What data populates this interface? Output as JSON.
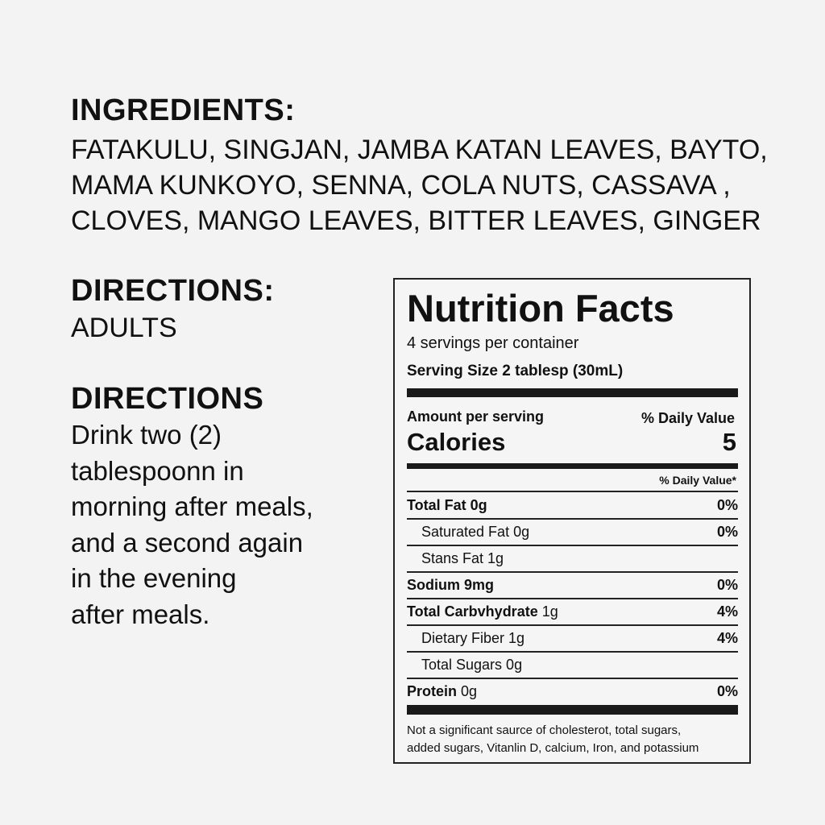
{
  "ingredients": {
    "heading": "INGREDIENTS:",
    "lines": [
      "FATAKULU, SINGJAN, JAMBA KATAN LEAVES, BAYTO,",
      "MAMA KUNKOYO, SENNA, COLA NUTS, CASSAVA ,",
      "CLOVES, MANGO LEAVES, BITTER LEAVES, GINGER"
    ]
  },
  "directions_1": {
    "heading": "DIRECTIONS:",
    "text": "ADULTS"
  },
  "directions_2": {
    "heading": "DIRECTIONS",
    "lines": [
      "Drink two (2)",
      "tablespoonn in",
      "morning after meals,",
      "and a second again",
      "in the evening",
      "after meals."
    ]
  },
  "nutrition": {
    "title": "Nutrition Facts",
    "servings": "4 servings per container",
    "serving_size": "Serving Size 2 tablesp (30mL)",
    "amount_label": "Amount per serving",
    "dv_label": "% Daily Value",
    "calories_label": "Calories",
    "calories_value": "5",
    "dv_label_2": "% Daily Value*",
    "rows": [
      {
        "bold": "Total Fat 0g",
        "rest": "",
        "dv": "0%"
      },
      {
        "bold": "",
        "rest": "Saturated Fat 0g",
        "dv": "0%"
      },
      {
        "bold": "",
        "rest": "Stans Fat 1g",
        "dv": ""
      },
      {
        "bold": "Sodium 9mg",
        "rest": "",
        "dv": "0%"
      },
      {
        "bold": "Total Carbvhydrate",
        "rest": " 1g",
        "dv": "4%"
      },
      {
        "bold": "",
        "rest": "Dietary Fiber 1g",
        "dv": "4%"
      },
      {
        "bold": "",
        "rest": "Total Sugars 0g",
        "dv": ""
      },
      {
        "bold": "Protein",
        "rest": " 0g",
        "dv": "0%"
      }
    ],
    "footnote": [
      "Not a significant saurce of cholesterot, total sugars,",
      "added sugars, Vitanlin D, calcium, Iron, and potassium"
    ]
  }
}
